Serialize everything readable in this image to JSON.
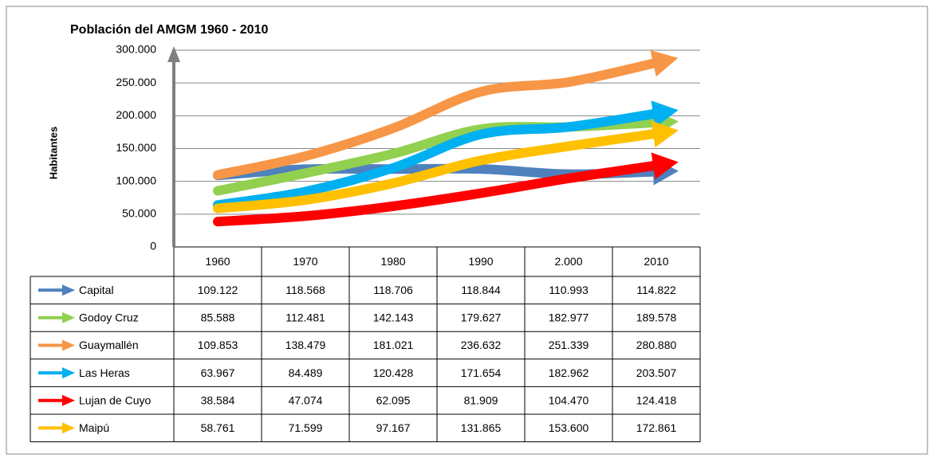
{
  "chart_data": {
    "type": "line",
    "title": "Población del AMGM 1960 - 2010",
    "y_label": "Habitantes",
    "categories": [
      "1960",
      "1970",
      "1980",
      "1990",
      "2.000",
      "2010"
    ],
    "ylim": [
      0,
      300000
    ],
    "yticks": [
      0,
      {
        "value": 50000,
        "label": "50.000"
      },
      {
        "value": 100000,
        "label": "100.000"
      },
      {
        "value": 150000,
        "label": "150.000"
      },
      {
        "value": 200000,
        "label": "200.000"
      },
      {
        "value": 250000,
        "label": "250.000"
      },
      {
        "value": 300000,
        "label": "300.000"
      }
    ],
    "grid": true,
    "series": [
      {
        "name": "Capital",
        "color": "#4f81bd",
        "values": [
          109122,
          118568,
          118706,
          118844,
          110993,
          114822
        ],
        "value_labels": [
          "109.122",
          "118.568",
          "118.706",
          "118.844",
          "110.993",
          "114.822"
        ]
      },
      {
        "name": "Godoy Cruz",
        "color": "#92d050",
        "values": [
          85588,
          112481,
          142143,
          179627,
          182977,
          189578
        ],
        "value_labels": [
          "85.588",
          "112.481",
          "142.143",
          "179.627",
          "182.977",
          "189.578"
        ]
      },
      {
        "name": "Guaymallén",
        "color": "#f79646",
        "values": [
          109853,
          138479,
          181021,
          236632,
          251339,
          280880
        ],
        "value_labels": [
          "109.853",
          "138.479",
          "181.021",
          "236.632",
          "251.339",
          "280.880"
        ]
      },
      {
        "name": "Las Heras",
        "color": "#00b0f0",
        "values": [
          63967,
          84489,
          120428,
          171654,
          182962,
          203507
        ],
        "value_labels": [
          "63.967",
          "84.489",
          "120.428",
          "171.654",
          "182.962",
          "203.507"
        ]
      },
      {
        "name": "Lujan de Cuyo",
        "color": "#ff0000",
        "values": [
          38584,
          47074,
          62095,
          81909,
          104470,
          124418
        ],
        "value_labels": [
          "38.584",
          "47.074",
          "62.095",
          "81.909",
          "104.470",
          "124.418"
        ]
      },
      {
        "name": "Maipú",
        "color": "#ffc000",
        "values": [
          58761,
          71599,
          97167,
          131865,
          153600,
          172861
        ],
        "value_labels": [
          "58.761",
          "71.599",
          "97.167",
          "131.865",
          "153.600",
          "172.861"
        ]
      }
    ]
  }
}
